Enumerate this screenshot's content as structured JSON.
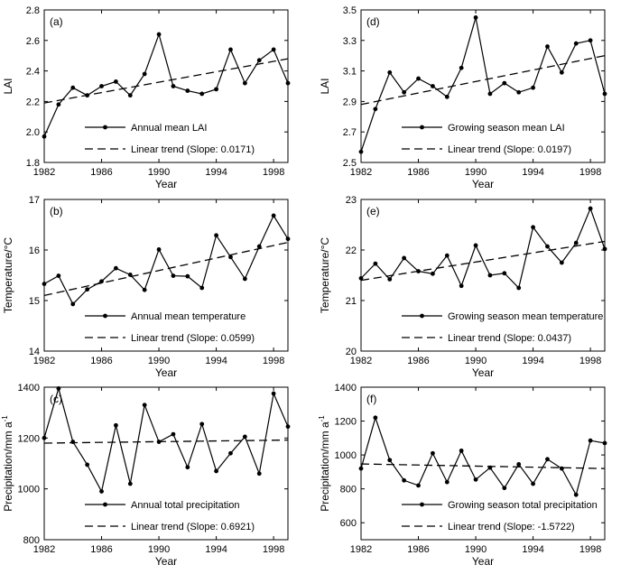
{
  "chart_data": [
    {
      "type": "line",
      "panel_label": "(a)",
      "xlabel": "Year",
      "ylabel": "LAI",
      "xlim": [
        1982,
        1999
      ],
      "ylim": [
        1.8,
        2.8
      ],
      "xticks": [
        "1982",
        "1986",
        "1990",
        "1994",
        "1998"
      ],
      "yticks": [
        "1.8",
        "2.0",
        "2.2",
        "2.4",
        "2.6",
        "2.8"
      ],
      "legend_position": "bottom-center",
      "series": [
        {
          "name": "Annual mean LAI",
          "style": "line-dot",
          "x": [
            1982,
            1983,
            1984,
            1985,
            1986,
            1987,
            1988,
            1989,
            1990,
            1991,
            1992,
            1993,
            1994,
            1995,
            1996,
            1997,
            1998,
            1999
          ],
          "values": [
            1.97,
            2.18,
            2.29,
            2.24,
            2.3,
            2.33,
            2.24,
            2.38,
            2.64,
            2.3,
            2.27,
            2.25,
            2.28,
            2.54,
            2.32,
            2.47,
            2.54,
            2.32
          ]
        },
        {
          "name": "Linear trend (Slope: 0.0171)",
          "style": "dashed",
          "x": [
            1982,
            1999
          ],
          "values": [
            2.19,
            2.48
          ]
        }
      ]
    },
    {
      "type": "line",
      "panel_label": "(d)",
      "xlabel": "Year",
      "ylabel": "LAI",
      "xlim": [
        1982,
        1999
      ],
      "ylim": [
        2.5,
        3.5
      ],
      "xticks": [
        "1982",
        "1986",
        "1990",
        "1994",
        "1998"
      ],
      "yticks": [
        "2.5",
        "2.7",
        "2.9",
        "3.1",
        "3.3",
        "3.5"
      ],
      "legend_position": "bottom-center",
      "series": [
        {
          "name": "Growing season mean LAI",
          "style": "line-dot",
          "x": [
            1982,
            1983,
            1984,
            1985,
            1986,
            1987,
            1988,
            1989,
            1990,
            1991,
            1992,
            1993,
            1994,
            1995,
            1996,
            1997,
            1998,
            1999
          ],
          "values": [
            2.57,
            2.85,
            3.09,
            2.96,
            3.05,
            3.0,
            2.93,
            3.12,
            3.45,
            2.95,
            3.02,
            2.96,
            2.99,
            3.26,
            3.09,
            3.28,
            3.3,
            2.95
          ]
        },
        {
          "name": "Linear trend (Slope: 0.0197)",
          "style": "dashed",
          "x": [
            1982,
            1999
          ],
          "values": [
            2.88,
            3.2
          ]
        }
      ]
    },
    {
      "type": "line",
      "panel_label": "(b)",
      "xlabel": "Year",
      "ylabel": "Temperature/°C",
      "xlim": [
        1982,
        1999
      ],
      "ylim": [
        14,
        17
      ],
      "xticks": [
        "1982",
        "1986",
        "1990",
        "1994",
        "1998"
      ],
      "yticks": [
        "14",
        "15",
        "16",
        "17"
      ],
      "legend_position": "bottom-center",
      "series": [
        {
          "name": "Annual mean temperature",
          "style": "line-dot",
          "x": [
            1982,
            1983,
            1984,
            1985,
            1986,
            1987,
            1988,
            1989,
            1990,
            1991,
            1992,
            1993,
            1994,
            1995,
            1996,
            1997,
            1998,
            1999
          ],
          "values": [
            15.33,
            15.49,
            14.93,
            15.22,
            15.38,
            15.64,
            15.51,
            15.21,
            16.01,
            15.49,
            15.48,
            15.25,
            16.29,
            15.86,
            15.43,
            16.07,
            16.68,
            16.22
          ]
        },
        {
          "name": "Linear trend (Slope: 0.0599)",
          "style": "dashed",
          "x": [
            1982,
            1999
          ],
          "values": [
            15.1,
            16.15
          ]
        }
      ]
    },
    {
      "type": "line",
      "panel_label": "(e)",
      "xlabel": "Year",
      "ylabel": "Temperature/°C",
      "xlim": [
        1982,
        1999
      ],
      "ylim": [
        20,
        23
      ],
      "xticks": [
        "1982",
        "1986",
        "1990",
        "1994",
        "1998"
      ],
      "yticks": [
        "20",
        "21",
        "22",
        "23"
      ],
      "legend_position": "bottom-center",
      "series": [
        {
          "name": "Growing season mean temperature",
          "style": "line-dot",
          "x": [
            1982,
            1983,
            1984,
            1985,
            1986,
            1987,
            1988,
            1989,
            1990,
            1991,
            1992,
            1993,
            1994,
            1995,
            1996,
            1997,
            1998,
            1999
          ],
          "values": [
            21.44,
            21.73,
            21.42,
            21.84,
            21.58,
            21.53,
            21.89,
            21.29,
            22.09,
            21.5,
            21.54,
            21.25,
            22.45,
            22.07,
            21.75,
            22.14,
            22.82,
            22.02
          ]
        },
        {
          "name": "Linear trend (Slope: 0.0437)",
          "style": "dashed",
          "x": [
            1982,
            1999
          ],
          "values": [
            21.4,
            22.17
          ]
        }
      ]
    },
    {
      "type": "line",
      "panel_label": "(c)",
      "xlabel": "Year",
      "ylabel": "Precipitation/mm a",
      "ylabel_superscript": "-1",
      "xlim": [
        1982,
        1999
      ],
      "ylim": [
        800,
        1400
      ],
      "xticks": [
        "1982",
        "1986",
        "1990",
        "1994",
        "1998"
      ],
      "yticks": [
        "800",
        "1000",
        "1200",
        "1400"
      ],
      "legend_position": "bottom-center",
      "series": [
        {
          "name": "Annual total precipitation",
          "style": "line-dot",
          "x": [
            1982,
            1983,
            1984,
            1985,
            1986,
            1987,
            1988,
            1989,
            1990,
            1991,
            1992,
            1993,
            1994,
            1995,
            1996,
            1997,
            1998,
            1999
          ],
          "values": [
            1200,
            1395,
            1185,
            1095,
            990,
            1250,
            1020,
            1330,
            1185,
            1215,
            1085,
            1255,
            1070,
            1140,
            1205,
            1060,
            1375,
            1245
          ]
        },
        {
          "name": "Linear trend (Slope: 0.6921)",
          "style": "dashed",
          "x": [
            1982,
            1999
          ],
          "values": [
            1180,
            1192
          ]
        }
      ]
    },
    {
      "type": "line",
      "panel_label": "(f)",
      "xlabel": "Year",
      "ylabel": "Precipitation/mm a",
      "ylabel_superscript": "-1",
      "xlim": [
        1982,
        1999
      ],
      "ylim": [
        500,
        1400
      ],
      "xticks": [
        "1982",
        "1986",
        "1990",
        "1994",
        "1998"
      ],
      "yticks": [
        "600",
        "800",
        "1000",
        "1200",
        "1400"
      ],
      "legend_position": "bottom-center",
      "series": [
        {
          "name": "Growing season total precipitation",
          "style": "line-dot",
          "x": [
            1982,
            1983,
            1984,
            1985,
            1986,
            1987,
            1988,
            1989,
            1990,
            1991,
            1992,
            1993,
            1994,
            1995,
            1996,
            1997,
            1998,
            1999
          ],
          "values": [
            920,
            1220,
            970,
            850,
            820,
            1010,
            840,
            1025,
            855,
            925,
            805,
            945,
            830,
            975,
            920,
            765,
            1085,
            1070
          ]
        },
        {
          "name": "Linear trend (Slope: -1.5722)",
          "style": "dashed",
          "x": [
            1982,
            1999
          ],
          "values": [
            947,
            920
          ]
        }
      ]
    }
  ]
}
